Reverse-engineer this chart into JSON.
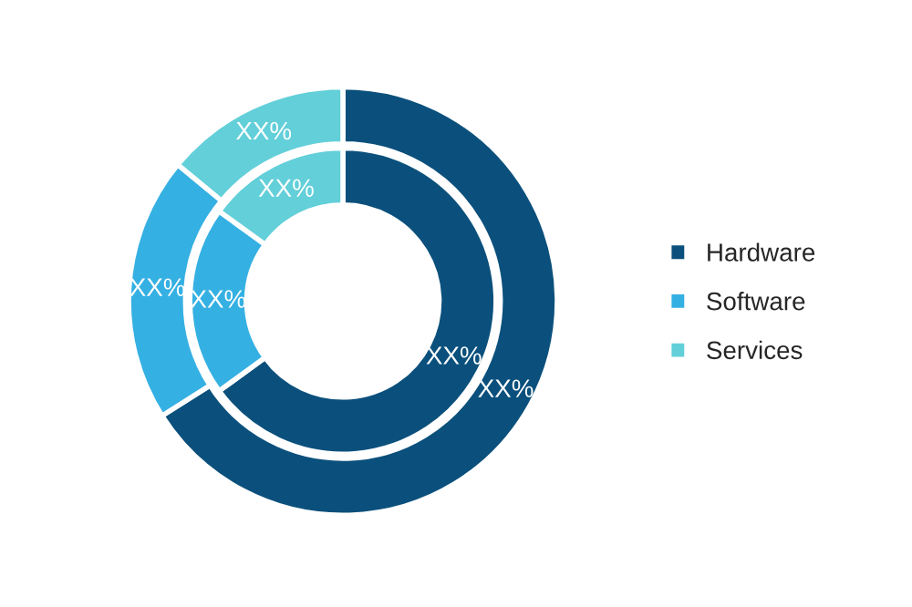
{
  "chart_data": {
    "type": "donut",
    "categories": [
      "Hardware",
      "Software",
      "Services"
    ],
    "legend": "right",
    "series": [
      {
        "colors": [
          "#0b507c",
          "#35b0e3",
          "#62cfd9"
        ],
        "values": [
          66,
          20,
          14
        ],
        "value_labels": [
          "XX%",
          "XX%",
          "XX%"
        ]
      },
      {
        "colors": [
          "#0b507c",
          "#35b0e3",
          "#62cfd9"
        ],
        "values": [
          65,
          20,
          15
        ],
        "value_labels": [
          "XX%",
          "XX%",
          "XX%"
        ]
      }
    ]
  }
}
